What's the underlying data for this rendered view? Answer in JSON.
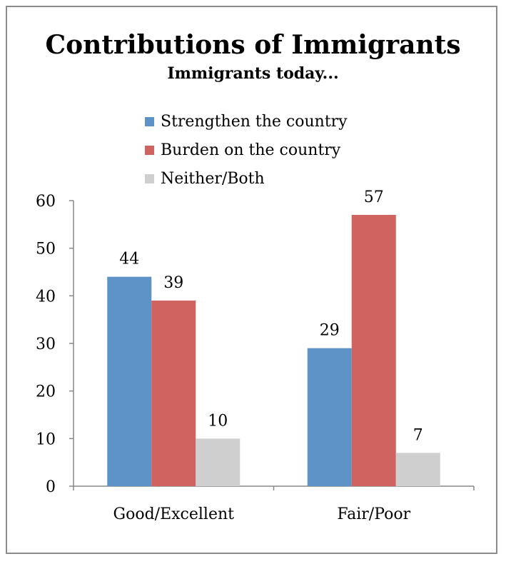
{
  "title": "Contributions of Immigrants",
  "subtitle": "Immigrants today...",
  "colors": {
    "strengthen": "#5e93c8",
    "burden": "#d0625f",
    "neither": "#cfcfcf"
  },
  "chart_data": {
    "type": "bar",
    "categories": [
      "Good/Excellent",
      "Fair/Poor"
    ],
    "series": [
      {
        "name": "Strengthen the country",
        "values": [
          44,
          29
        ]
      },
      {
        "name": "Burden on the country",
        "values": [
          39,
          57
        ]
      },
      {
        "name": "Neither/Both",
        "values": [
          10,
          7
        ]
      }
    ],
    "ylim": [
      0,
      60
    ],
    "yticks": [
      0,
      10,
      20,
      30,
      40,
      50,
      60
    ],
    "grid": false,
    "legend_position": "top",
    "data_labels": true
  }
}
